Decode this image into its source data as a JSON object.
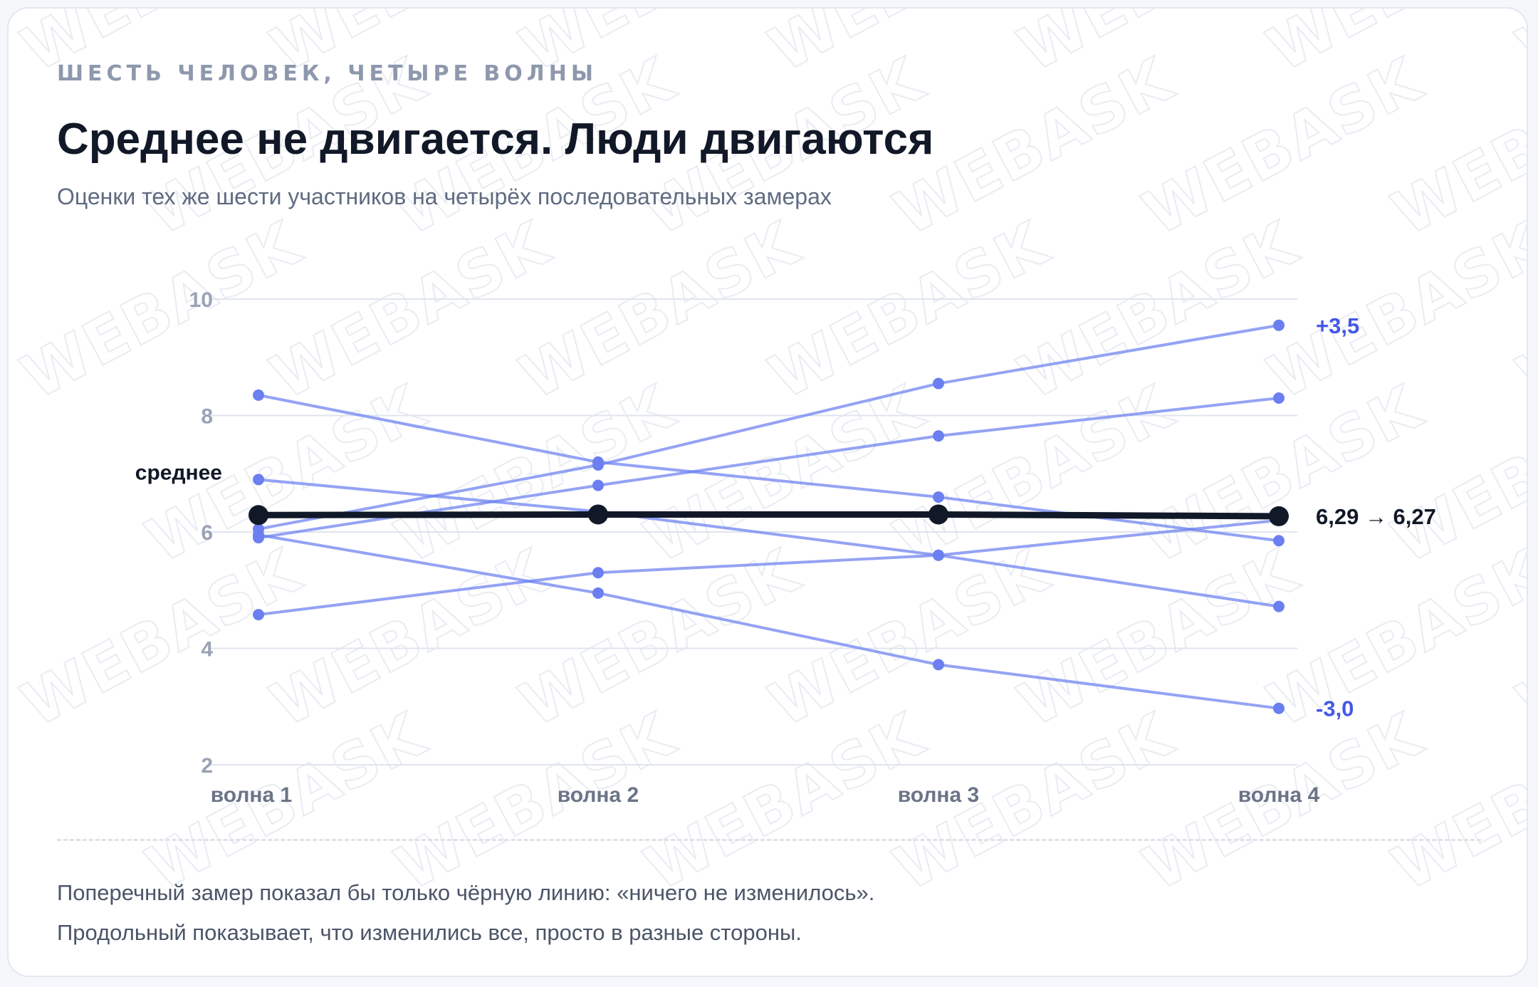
{
  "header": {
    "eyebrow": "ШЕСТЬ ЧЕЛОВЕК, ЧЕТЫРЕ ВОЛНЫ",
    "title": "Среднее не двигается. Люди двигаются",
    "subtitle": "Оценки тех же шести участников на четырёх последовательных замерах"
  },
  "footer": {
    "line1": "Поперечный замер показал бы только чёрную линию: «ничего не изменилось».",
    "line2": "Продольный показывает, что изменились все, просто в разные стороны."
  },
  "watermark": "WEBASK",
  "colors": {
    "individual": "#6b7ff0",
    "mean": "#111827",
    "grid": "#dfe4ee",
    "tick": "#9aa3b5",
    "category": "#6b7487",
    "accent": "#4458e6"
  },
  "chart_data": {
    "type": "line",
    "categories": [
      "волна 1",
      "волна 2",
      "волна 3",
      "волна 4"
    ],
    "ylim": [
      2,
      10
    ],
    "yticks": [
      2,
      4,
      6,
      8,
      10
    ],
    "yticks_labels": [
      "2",
      "4",
      "6",
      "8",
      "10"
    ],
    "grid": true,
    "series": [
      {
        "values": [
          6.05,
          7.15,
          8.55,
          9.55
        ]
      },
      {
        "values": [
          5.9,
          6.8,
          7.65,
          8.3
        ]
      },
      {
        "values": [
          8.35,
          7.2,
          6.6,
          5.85
        ]
      },
      {
        "values": [
          6.9,
          6.35,
          5.6,
          4.72
        ]
      },
      {
        "values": [
          4.58,
          5.3,
          5.6,
          6.2
        ]
      },
      {
        "values": [
          5.95,
          4.95,
          3.72,
          2.97
        ]
      }
    ],
    "mean": {
      "name": "среднее",
      "values": [
        6.29,
        6.3,
        6.3,
        6.27
      ]
    },
    "annotations": {
      "top": "+3,5",
      "bottom": "-3,0",
      "mean": "6,29 → 6,27"
    }
  }
}
